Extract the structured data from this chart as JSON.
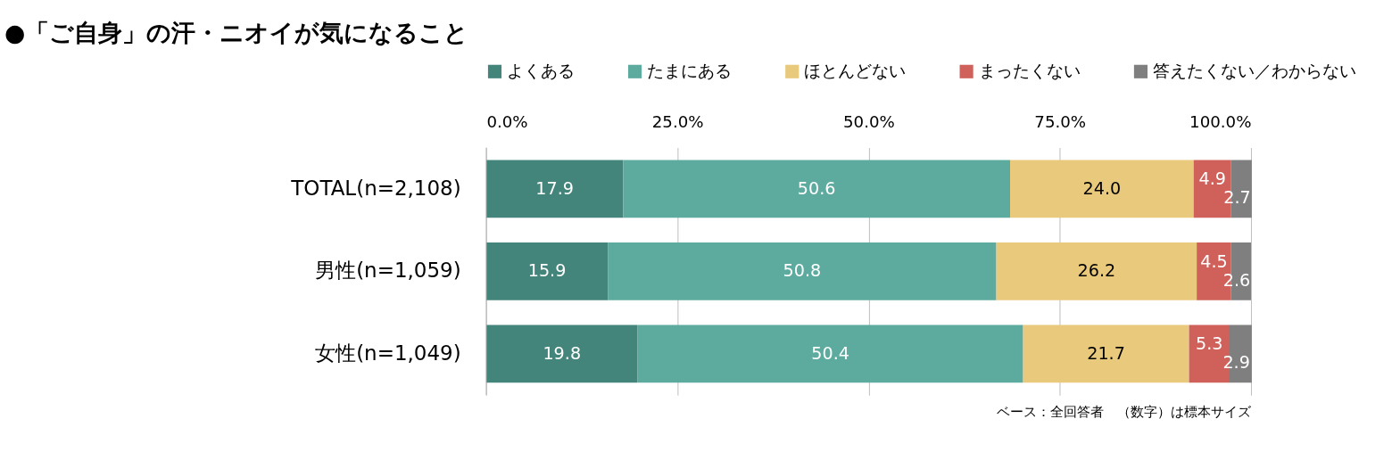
{
  "chart_data": {
    "type": "bar",
    "orientation": "horizontal",
    "stacked": true,
    "title": "●「ご自身」の汗・ニオイが気になること",
    "categories": [
      "TOTAL(n=2,108)",
      "男性(n=1,059)",
      "女性(n=1,049)"
    ],
    "series": [
      {
        "name": "よくある",
        "color": "#44857b",
        "values": [
          17.9,
          15.9,
          19.8
        ],
        "value_labels": [
          "17.9",
          "15.9",
          "19.8"
        ]
      },
      {
        "name": "たまにある",
        "color": "#5daa9e",
        "values": [
          50.6,
          50.8,
          50.4
        ],
        "value_labels": [
          "50.6",
          "50.8",
          "50.4"
        ]
      },
      {
        "name": "ほとんどない",
        "color": "#e9c97b",
        "values": [
          24.0,
          26.2,
          21.7
        ],
        "value_labels": [
          "24.0",
          "26.2",
          "21.7"
        ]
      },
      {
        "name": "まったくない",
        "color": "#d0605a",
        "values": [
          4.9,
          4.5,
          5.3
        ],
        "value_labels": [
          "4.9",
          "4.5",
          "5.3"
        ]
      },
      {
        "name": "答えたくない／わからない",
        "color": "#7f7f7f",
        "values": [
          2.7,
          2.6,
          2.9
        ],
        "value_labels": [
          "2.7",
          "2.6",
          "2.9"
        ]
      }
    ],
    "xlim": [
      0,
      100
    ],
    "xticks": [
      {
        "value": 0,
        "label": "0.0%"
      },
      {
        "value": 25,
        "label": "25.0%"
      },
      {
        "value": 50,
        "label": "50.0%"
      },
      {
        "value": 75,
        "label": "75.0%"
      },
      {
        "value": 100,
        "label": "100.0%"
      }
    ],
    "grid": "x",
    "legend": "top",
    "annotations": [
      "ベース：全回答者　（数字）は標本サイズ"
    ]
  }
}
